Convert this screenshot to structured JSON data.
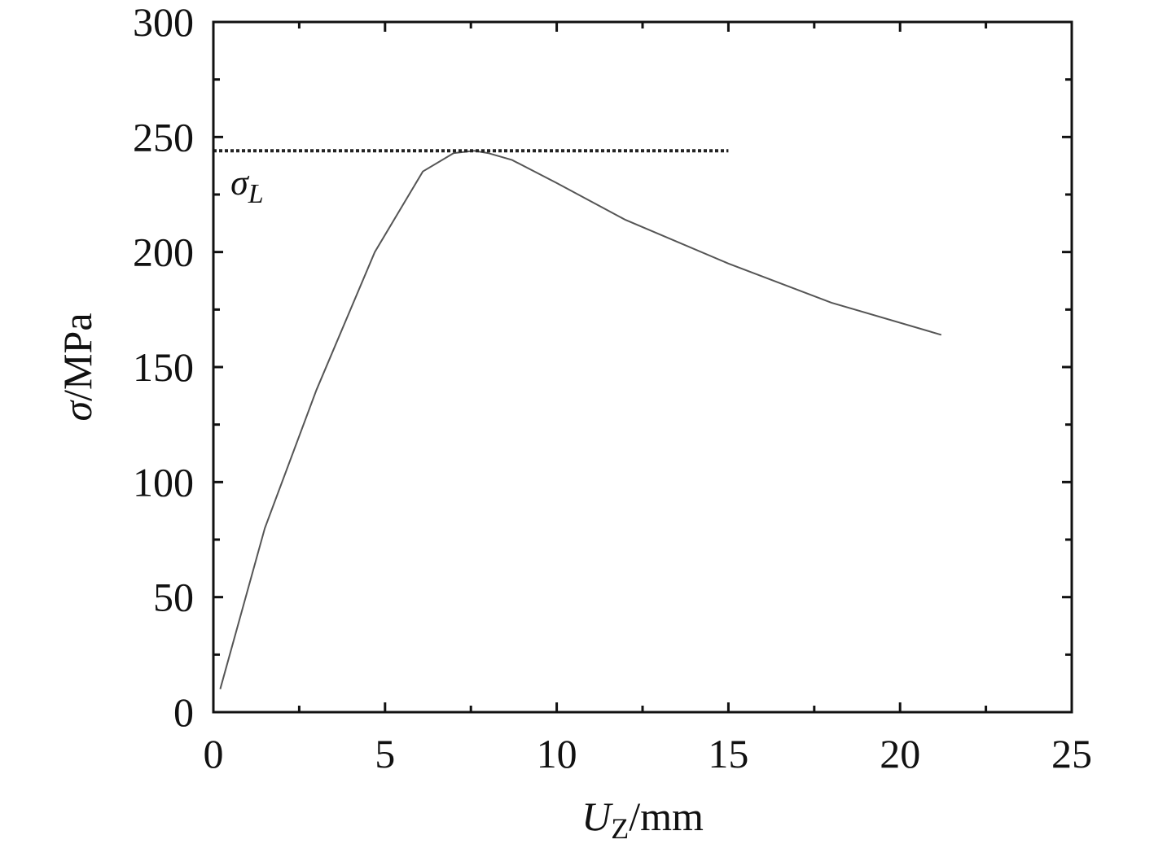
{
  "chart_data": {
    "type": "line",
    "title": "",
    "xlabel": {
      "symbol": "U",
      "subscript": "Z",
      "unit": "/mm"
    },
    "ylabel": {
      "symbol": "σ",
      "unit": "/MPa"
    },
    "xlim": [
      0,
      25
    ],
    "ylim": [
      0,
      300
    ],
    "x_ticks": [
      0,
      5,
      10,
      15,
      20,
      25
    ],
    "y_ticks": [
      0,
      50,
      100,
      150,
      200,
      250,
      300
    ],
    "x_tick_labels": [
      "0",
      "5",
      "10",
      "15",
      "20",
      "25"
    ],
    "y_tick_labels": [
      "0",
      "50",
      "100",
      "150",
      "200",
      "250",
      "300"
    ],
    "grid": false,
    "line_color": "#555555",
    "reference_color": "#222222",
    "series": [
      {
        "x": [
          0.2,
          1.5,
          3.0,
          4.7,
          6.1,
          7.0,
          7.6,
          8.0,
          8.7,
          10.0,
          12.0,
          15.0,
          18.0,
          21.2
        ],
        "y": [
          10,
          80,
          140,
          200,
          235,
          243,
          244,
          243,
          240,
          230,
          214,
          195,
          178,
          164
        ]
      }
    ],
    "reference_line": {
      "y": 244,
      "x_start": 0,
      "x_end": 15,
      "style": "dotted"
    },
    "annotations": [
      {
        "symbol": "σ",
        "subscript": "L",
        "x": 0.5,
        "y": 225
      }
    ]
  }
}
